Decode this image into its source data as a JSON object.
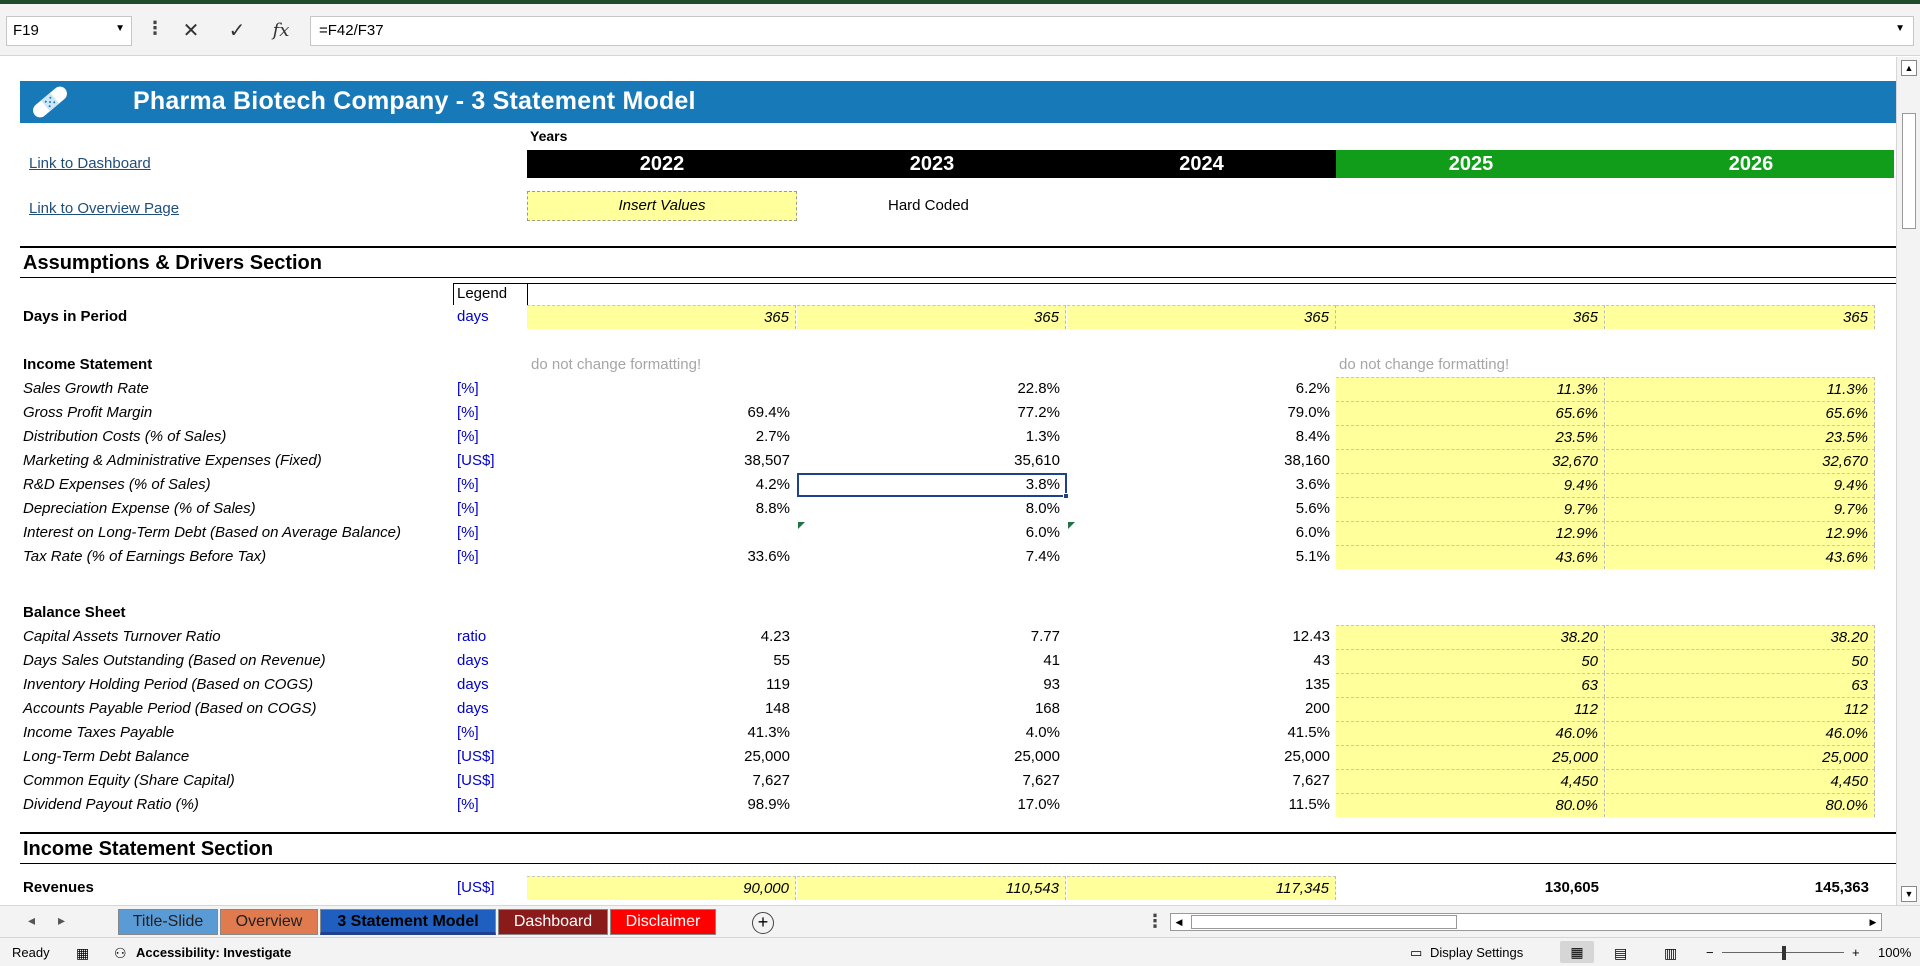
{
  "formula_bar": {
    "name_box": "F19",
    "formula": "=F42/F37"
  },
  "banner": {
    "title": "Pharma Biotech Company  - 3 Statement Model"
  },
  "links": {
    "dashboard": "Link to Dashboard",
    "overview": "Link to Overview Page"
  },
  "years_label": "Years",
  "years": [
    "2022",
    "2023",
    "2024",
    "2025",
    "2026"
  ],
  "insert_values": "Insert Values",
  "hard_coded": "Hard Coded",
  "sections": {
    "assumptions": "Assumptions & Drivers Section",
    "income": "Income Statement Section"
  },
  "legend": "Legend",
  "days_row": {
    "label": "Days in Period",
    "unit": "days",
    "values": [
      "365",
      "365",
      "365",
      "365",
      "365"
    ]
  },
  "note": "do not change formatting!",
  "income_header": "Income Statement",
  "income_rows": [
    {
      "label": "Sales Growth Rate",
      "unit": "[%]",
      "values": [
        "",
        "22.8%",
        "6.2%",
        "11.3%",
        "11.3%"
      ]
    },
    {
      "label": "Gross Profit Margin",
      "unit": "[%]",
      "values": [
        "69.4%",
        "77.2%",
        "79.0%",
        "65.6%",
        "65.6%"
      ]
    },
    {
      "label": "Distribution Costs (% of Sales)",
      "unit": "[%]",
      "values": [
        "2.7%",
        "1.3%",
        "8.4%",
        "23.5%",
        "23.5%"
      ]
    },
    {
      "label": "Marketing & Administrative Expenses (Fixed)",
      "unit": "[US$]",
      "values": [
        "38,507",
        "35,610",
        "38,160",
        "32,670",
        "32,670"
      ]
    },
    {
      "label": "R&D Expenses (% of Sales)",
      "unit": "[%]",
      "values": [
        "4.2%",
        "3.8%",
        "3.6%",
        "9.4%",
        "9.4%"
      ]
    },
    {
      "label": "Depreciation Expense (% of Sales)",
      "unit": "[%]",
      "values": [
        "8.8%",
        "8.0%",
        "5.6%",
        "9.7%",
        "9.7%"
      ]
    },
    {
      "label": "Interest on Long-Term Debt (Based on Average Balance)",
      "unit": "[%]",
      "values": [
        "",
        "6.0%",
        "6.0%",
        "12.9%",
        "12.9%"
      ]
    },
    {
      "label": "Tax Rate (% of Earnings Before Tax)",
      "unit": "[%]",
      "values": [
        "33.6%",
        "7.4%",
        "5.1%",
        "43.6%",
        "43.6%"
      ]
    }
  ],
  "balance_header": "Balance Sheet",
  "balance_rows": [
    {
      "label": "Capital Assets Turnover Ratio",
      "unit": "ratio",
      "values": [
        "4.23",
        "7.77",
        "12.43",
        "38.20",
        "38.20"
      ]
    },
    {
      "label": "Days Sales Outstanding (Based on Revenue)",
      "unit": "days",
      "values": [
        "55",
        "41",
        "43",
        "50",
        "50"
      ]
    },
    {
      "label": "Inventory Holding Period (Based on COGS)",
      "unit": "days",
      "values": [
        "119",
        "93",
        "135",
        "63",
        "63"
      ]
    },
    {
      "label": "Accounts Payable Period (Based on COGS)",
      "unit": "days",
      "values": [
        "148",
        "168",
        "200",
        "112",
        "112"
      ]
    },
    {
      "label": "Income Taxes Payable",
      "unit": "[%]",
      "values": [
        "41.3%",
        "4.0%",
        "41.5%",
        "46.0%",
        "46.0%"
      ]
    },
    {
      "label": "Long-Term Debt Balance",
      "unit": "[US$]",
      "values": [
        "25,000",
        "25,000",
        "25,000",
        "25,000",
        "25,000"
      ]
    },
    {
      "label": "Common Equity (Share Capital)",
      "unit": "[US$]",
      "values": [
        "7,627",
        "7,627",
        "7,627",
        "4,450",
        "4,450"
      ]
    },
    {
      "label": "Dividend Payout Ratio (%)",
      "unit": "[%]",
      "values": [
        "98.9%",
        "17.0%",
        "11.5%",
        "80.0%",
        "80.0%"
      ]
    }
  ],
  "revenues_row": {
    "label": "Revenues",
    "unit": "[US$]",
    "values": [
      "90,000",
      "110,543",
      "117,345",
      "130,605",
      "145,363"
    ]
  },
  "sheet_tabs": [
    {
      "label": "Title-Slide",
      "bg": "#5b9bd5",
      "fg": "#1f1f1f"
    },
    {
      "label": "Overview",
      "bg": "#e07a4f",
      "fg": "#1f1f1f"
    },
    {
      "label": "3 Statement Model",
      "bg": "#1f5fbf",
      "fg": "#000000",
      "active": true
    },
    {
      "label": "Dashboard",
      "bg": "#8b1a1a",
      "fg": "#ffffff"
    },
    {
      "label": "Disclaimer",
      "bg": "#ff0000",
      "fg": "#ffffff"
    }
  ],
  "status_bar": {
    "ready": "Ready",
    "accessibility": "Accessibility: Investigate",
    "display_settings": "Display Settings",
    "zoom": "100%"
  },
  "colors": {
    "banner": "#1779b8",
    "year_actual": "#000000",
    "year_forecast": "#119c1a",
    "input_yellow": "#ffff9c",
    "unit_blue": "#0000cc"
  }
}
